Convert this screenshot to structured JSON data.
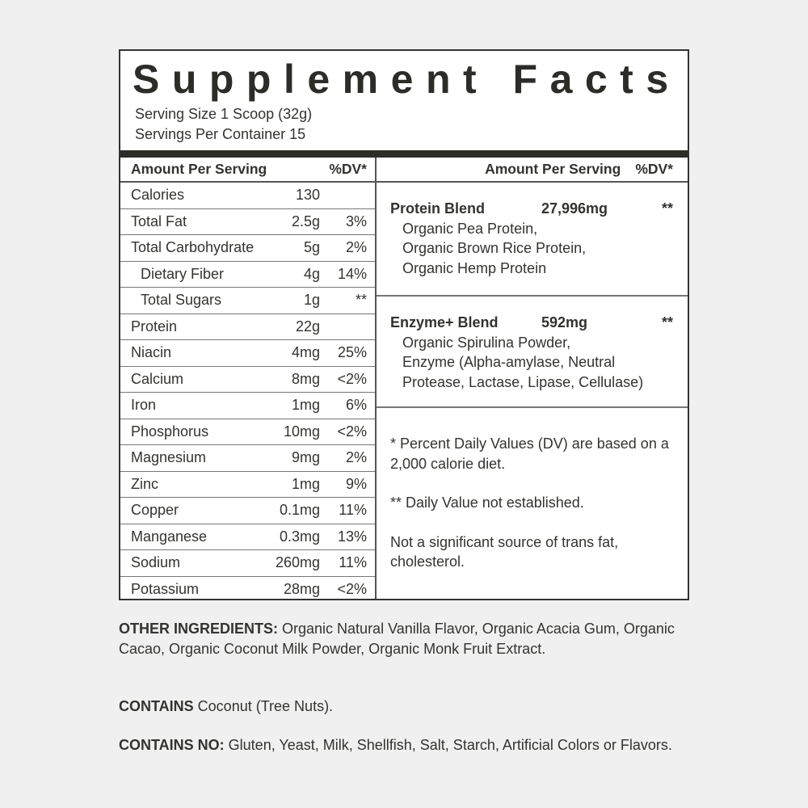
{
  "title": "Supplement Facts",
  "serving_size": "Serving Size 1 Scoop (32g)",
  "servings_per_container": "Servings Per Container 15",
  "left_header": {
    "amount": "Amount Per Serving",
    "dv": "%DV*"
  },
  "nutrients": [
    {
      "name": "Calories",
      "amount": "130",
      "dv": ""
    },
    {
      "name": "Total Fat",
      "amount": "2.5g",
      "dv": "3%"
    },
    {
      "name": "Total Carbohydrate",
      "amount": "5g",
      "dv": "2%"
    },
    {
      "name": "Dietary Fiber",
      "amount": "4g",
      "dv": "14%"
    },
    {
      "name": "Total Sugars",
      "amount": "1g",
      "dv": "**"
    },
    {
      "name": "Protein",
      "amount": "22g",
      "dv": ""
    },
    {
      "name": "Niacin",
      "amount": "4mg",
      "dv": "25%"
    },
    {
      "name": "Calcium",
      "amount": "8mg",
      "dv": "<2%"
    },
    {
      "name": "Iron",
      "amount": "1mg",
      "dv": "6%"
    },
    {
      "name": "Phosphorus",
      "amount": "10mg",
      "dv": "<2%"
    },
    {
      "name": "Magnesium",
      "amount": "9mg",
      "dv": "2%"
    },
    {
      "name": "Zinc",
      "amount": "1mg",
      "dv": "9%"
    },
    {
      "name": "Copper",
      "amount": "0.1mg",
      "dv": "11%"
    },
    {
      "name": "Manganese",
      "amount": "0.3mg",
      "dv": "13%"
    },
    {
      "name": "Sodium",
      "amount": "260mg",
      "dv": "11%"
    },
    {
      "name": "Potassium",
      "amount": "28mg",
      "dv": "<2%"
    }
  ],
  "right_header": {
    "amount": "Amount Per Serving",
    "dv": "%DV*"
  },
  "blends": [
    {
      "name": "Protein Blend",
      "amount": "27,996mg",
      "dv": "**",
      "ingredients": [
        "Organic Pea Protein,",
        "Organic Brown Rice Protein,",
        "Organic Hemp Protein"
      ]
    },
    {
      "name": "Enzyme+ Blend",
      "amount": "592mg",
      "dv": "**",
      "ingredients": [
        "Organic Spirulina Powder,",
        "Enzyme (Alpha-amylase, Neutral",
        "Protease, Lactase, Lipase, Cellulase)"
      ]
    }
  ],
  "footnotes": [
    "* Percent Daily Values (DV) are based on a 2,000 calorie diet.",
    "** Daily Value not established.",
    "Not a significant source of trans fat, cholesterol."
  ],
  "other_ingredients": {
    "label": "OTHER INGREDIENTS:",
    "text": " Organic Natural Vanilla Flavor, Organic Acacia Gum, Organic Cacao, Organic Coconut Milk Powder, Organic Monk Fruit Extract."
  },
  "contains": {
    "label": "CONTAINS",
    "text": " Coconut (Tree Nuts)."
  },
  "contains_no": {
    "label": "CONTAINS NO:",
    "text": " Gluten, Yeast, Milk, Shellfish, Salt, Starch, Artificial Colors or Flavors."
  }
}
